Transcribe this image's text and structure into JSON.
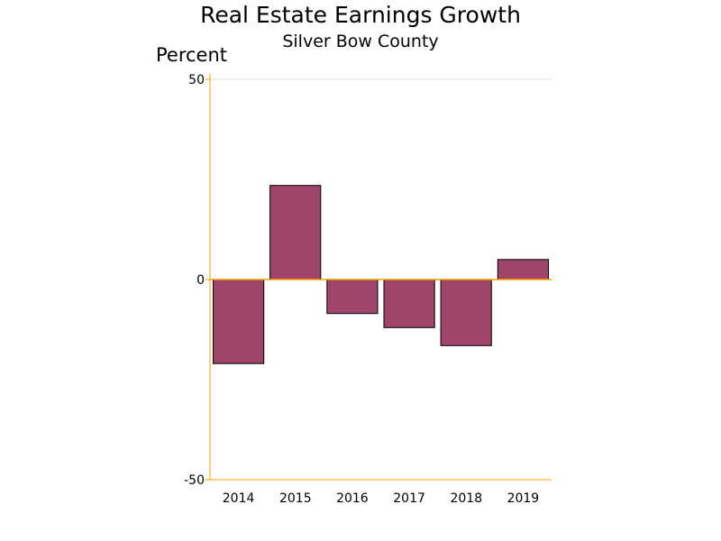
{
  "chart_data": {
    "type": "bar",
    "title": "Real Estate Earnings Growth",
    "subtitle": "Silver Bow County",
    "ylabel": "Percent",
    "xlabel": "",
    "categories": [
      "2014",
      "2015",
      "2016",
      "2017",
      "2018",
      "2019"
    ],
    "values": [
      -21,
      23.5,
      -8.5,
      -12,
      -16.5,
      5
    ],
    "ylim": [
      -50,
      50
    ],
    "yticks": [
      50,
      0,
      -50
    ],
    "ytick_labels": [
      "50",
      "0",
      "-50"
    ],
    "grid": false,
    "legend": "none",
    "colors": {
      "bar_fill": "#A0446A",
      "bar_stroke": "#000000",
      "axis": "#F0A000",
      "gridline": "#E0E0E0",
      "text": "#000000"
    }
  }
}
